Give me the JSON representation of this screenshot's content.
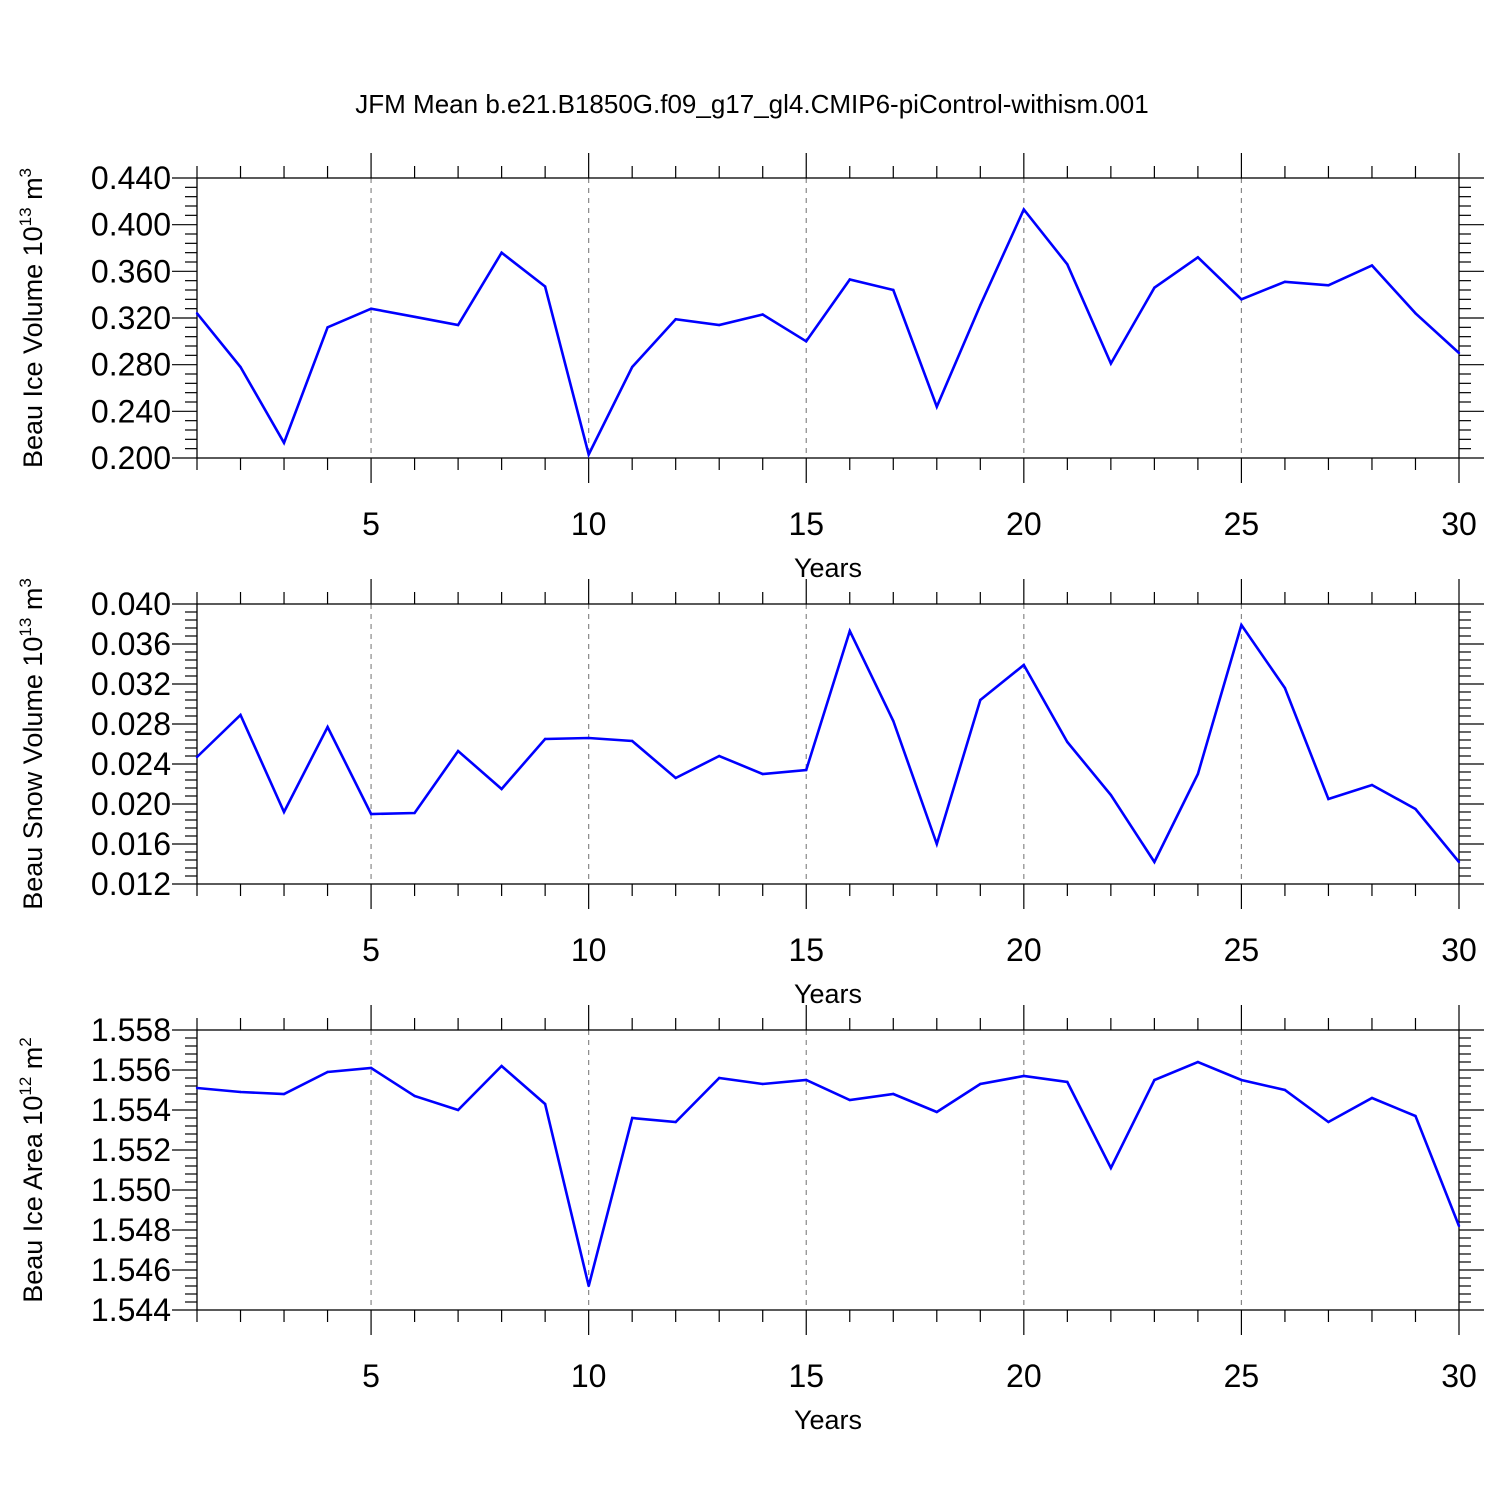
{
  "figure": {
    "title": "JFM Mean b.e21.B1850G.f09_g17_gl4.CMIP6-piControl-withism.001",
    "line_color": "#0000ff",
    "grid_color": "#888888"
  },
  "chart_data": [
    {
      "type": "line",
      "title": "",
      "xlabel": "Years",
      "ylabel_main": "Beau Ice Volume 10",
      "ylabel_exp": "13",
      "ylabel_unit": " m",
      "ylabel_unit_exp": "3",
      "xlim": [
        1,
        30
      ],
      "ylim": [
        0.2,
        0.44
      ],
      "x_ticks": [
        5,
        10,
        15,
        20,
        25,
        30
      ],
      "x_tick_labels": [
        "5",
        "10",
        "15",
        "20",
        "25",
        "30"
      ],
      "y_ticks": [
        0.2,
        0.24,
        0.28,
        0.32,
        0.36,
        0.4,
        0.44
      ],
      "y_tick_labels": [
        "0.200",
        "0.240",
        "0.280",
        "0.320",
        "0.360",
        "0.400",
        "0.440"
      ],
      "grid": "vertical dashed at major x ticks",
      "series": [
        {
          "x": [
            1,
            2,
            3,
            4,
            5,
            6,
            7,
            8,
            9,
            10,
            11,
            12,
            13,
            14,
            15,
            16,
            17,
            18,
            19,
            20,
            21,
            22,
            23,
            24,
            25,
            26,
            27,
            28,
            29,
            30
          ],
          "values": [
            0.324,
            0.278,
            0.213,
            0.312,
            0.328,
            0.321,
            0.314,
            0.376,
            0.347,
            0.203,
            0.278,
            0.319,
            0.314,
            0.323,
            0.3,
            0.353,
            0.344,
            0.244,
            0.331,
            0.413,
            0.366,
            0.281,
            0.346,
            0.372,
            0.336,
            0.351,
            0.348,
            0.365,
            0.324,
            0.29
          ]
        }
      ]
    },
    {
      "type": "line",
      "title": "",
      "xlabel": "Years",
      "ylabel_main": "Beau Snow Volume 10",
      "ylabel_exp": "13",
      "ylabel_unit": " m",
      "ylabel_unit_exp": "3",
      "xlim": [
        1,
        30
      ],
      "ylim": [
        0.012,
        0.04
      ],
      "x_ticks": [
        5,
        10,
        15,
        20,
        25,
        30
      ],
      "x_tick_labels": [
        "5",
        "10",
        "15",
        "20",
        "25",
        "30"
      ],
      "y_ticks": [
        0.012,
        0.016,
        0.02,
        0.024,
        0.028,
        0.032,
        0.036,
        0.04
      ],
      "y_tick_labels": [
        "0.012",
        "0.016",
        "0.020",
        "0.024",
        "0.028",
        "0.032",
        "0.036",
        "0.040"
      ],
      "grid": "vertical dashed at major x ticks",
      "series": [
        {
          "x": [
            1,
            2,
            3,
            4,
            5,
            6,
            7,
            8,
            9,
            10,
            11,
            12,
            13,
            14,
            15,
            16,
            17,
            18,
            19,
            20,
            21,
            22,
            23,
            24,
            25,
            26,
            27,
            28,
            29,
            30
          ],
          "values": [
            0.0247,
            0.0289,
            0.0192,
            0.0277,
            0.019,
            0.0191,
            0.0253,
            0.0215,
            0.0265,
            0.0266,
            0.0263,
            0.0226,
            0.0248,
            0.023,
            0.0234,
            0.0373,
            0.0283,
            0.016,
            0.0304,
            0.0339,
            0.0262,
            0.0209,
            0.0142,
            0.023,
            0.0379,
            0.0316,
            0.0205,
            0.0219,
            0.0195,
            0.0142
          ]
        }
      ]
    },
    {
      "type": "line",
      "title": "",
      "xlabel": "Years",
      "ylabel_main": "Beau Ice Area 10",
      "ylabel_exp": "12",
      "ylabel_unit": " m",
      "ylabel_unit_exp": "2",
      "xlim": [
        1,
        30
      ],
      "ylim": [
        1.544,
        1.558
      ],
      "x_ticks": [
        5,
        10,
        15,
        20,
        25,
        30
      ],
      "x_tick_labels": [
        "5",
        "10",
        "15",
        "20",
        "25",
        "30"
      ],
      "y_ticks": [
        1.544,
        1.546,
        1.548,
        1.55,
        1.552,
        1.554,
        1.556,
        1.558
      ],
      "y_tick_labels": [
        "1.544",
        "1.546",
        "1.548",
        "1.550",
        "1.552",
        "1.554",
        "1.556",
        "1.558"
      ],
      "grid": "vertical dashed at major x ticks",
      "series": [
        {
          "x": [
            1,
            2,
            3,
            4,
            5,
            6,
            7,
            8,
            9,
            10,
            11,
            12,
            13,
            14,
            15,
            16,
            17,
            18,
            19,
            20,
            21,
            22,
            23,
            24,
            25,
            26,
            27,
            28,
            29,
            30
          ],
          "values": [
            1.5551,
            1.5549,
            1.5548,
            1.5559,
            1.5561,
            1.5547,
            1.554,
            1.5562,
            1.5543,
            1.5452,
            1.5536,
            1.5534,
            1.5556,
            1.5553,
            1.5555,
            1.5545,
            1.5548,
            1.5539,
            1.5553,
            1.5557,
            1.5554,
            1.5511,
            1.5555,
            1.5564,
            1.5555,
            1.555,
            1.5534,
            1.5546,
            1.5537,
            1.5482
          ]
        }
      ]
    }
  ]
}
